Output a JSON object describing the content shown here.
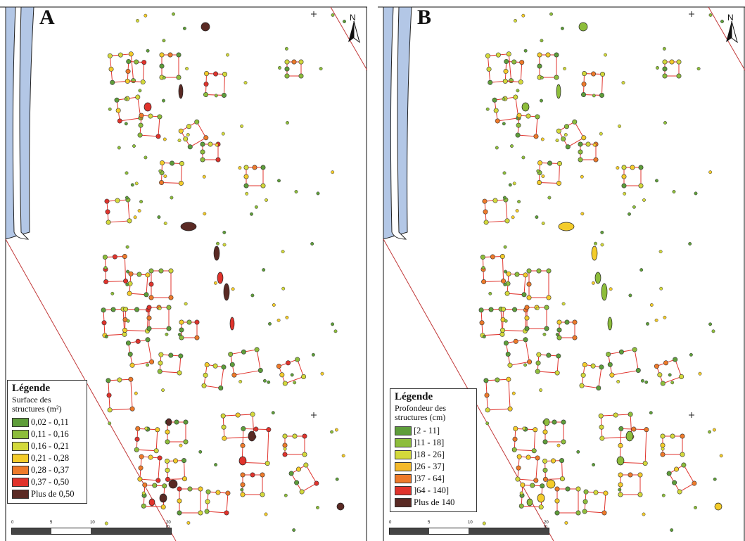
{
  "panels": [
    {
      "letter": "A",
      "north": "N",
      "legend": {
        "title": "Légende",
        "subtitle": "Surface des structures (m²)",
        "classes": [
          {
            "label": "0,02 - 0,11",
            "color": "#5e9d3a"
          },
          {
            "label": "0,11 - 0,16",
            "color": "#8dbd3b"
          },
          {
            "label": "0,16 - 0,21",
            "color": "#d3d93b"
          },
          {
            "label": "0,21 - 0,28",
            "color": "#f4cc2a"
          },
          {
            "label": "0,28 - 0,37",
            "color": "#ee7a2a"
          },
          {
            "label": "0,37 - 0,50",
            "color": "#e0332c"
          },
          {
            "label": "Plus de 0,50",
            "color": "#5a2a24"
          }
        ]
      },
      "scale": {
        "ticks": [
          "0",
          "5",
          "10",
          "20 m"
        ]
      }
    },
    {
      "letter": "B",
      "north": "N",
      "legend": {
        "title": "Légende",
        "subtitle": "Profondeur des structures (cm)",
        "classes": [
          {
            "label": "[2 - 11]",
            "color": "#5e9d3a"
          },
          {
            "label": "]11 - 18]",
            "color": "#8dbd3b"
          },
          {
            "label": "]18 - 26]",
            "color": "#d3d93b"
          },
          {
            "label": "]26 - 37]",
            "color": "#f4b92a"
          },
          {
            "label": "]37 - 64]",
            "color": "#ee7a2a"
          },
          {
            "label": "]64 - 140]",
            "color": "#e0332c"
          },
          {
            "label": "Plus de 140",
            "color": "#5a2a24"
          }
        ]
      },
      "scale": {
        "ticks": [
          "0",
          "5",
          "10",
          "20 m"
        ]
      }
    }
  ],
  "colors": {
    "water": "#b3c7e6",
    "building_outline": "#e0332c",
    "boundary_line": "#c23a3a"
  }
}
